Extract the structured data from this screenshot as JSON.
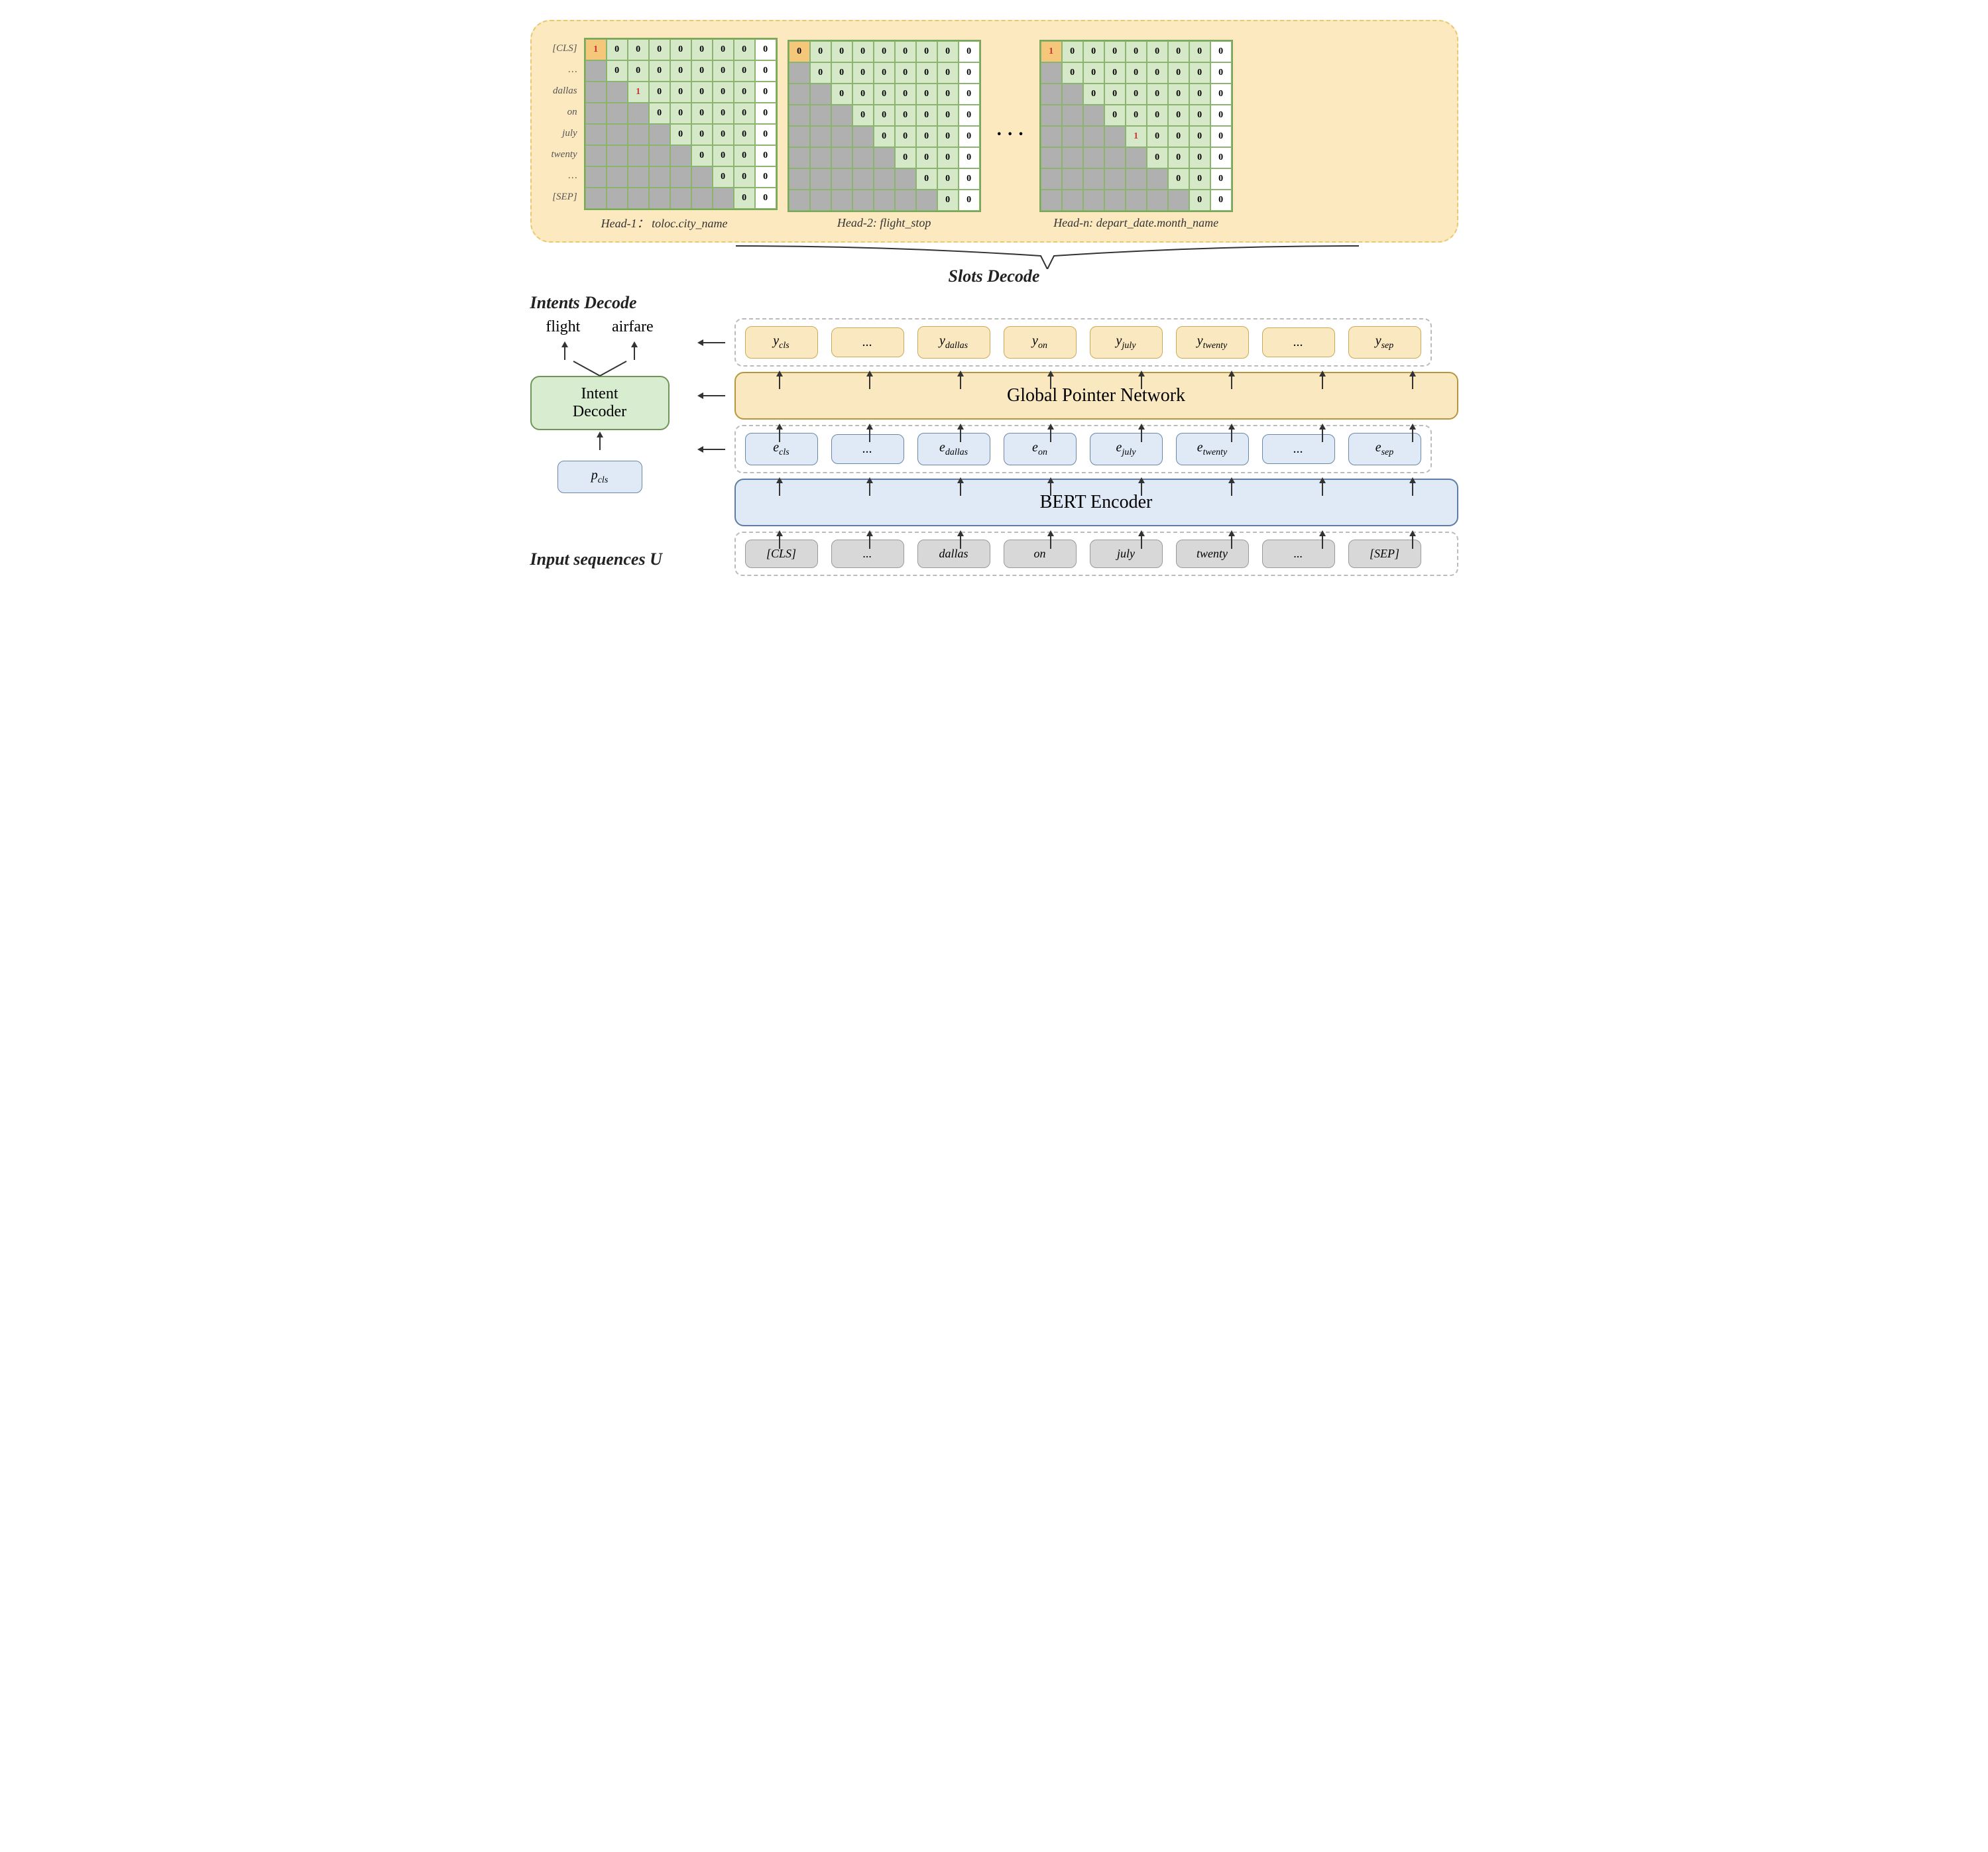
{
  "labels": {
    "slotsDecode": "Slots Decode",
    "intentsDecode": "Intents Decode",
    "inputSeq": "Input sequences U",
    "bert": "BERT Encoder",
    "gpn": "Global Pointer Network",
    "intentDecoder": "Intent\nDecoder",
    "pcls": "p",
    "pcls_sub": "cls"
  },
  "outputs": [
    "flight",
    "airfare"
  ],
  "rowLabels": [
    "[CLS]",
    "…",
    "dallas",
    "on",
    "july",
    "twenty",
    "…",
    "[SEP]"
  ],
  "heads": [
    {
      "caption": "Head-1： toloc.city_name",
      "ones": [
        [
          0,
          0
        ],
        [
          2,
          2
        ]
      ],
      "showLabels": true
    },
    {
      "caption": "Head-2:  flight_stop",
      "ones": [],
      "showLabels": false
    },
    {
      "caption": "Head-n: depart_date.month_name",
      "ones": [
        [
          0,
          0
        ],
        [
          4,
          4
        ]
      ],
      "showLabels": false
    }
  ],
  "inputTokens": [
    "[CLS]",
    "...",
    "dallas",
    "on",
    "july",
    "twenty",
    "...",
    "[SEP]"
  ],
  "eTokens": [
    "cls",
    "...",
    "dallas",
    "on",
    "july",
    "twenty",
    "...",
    "sep"
  ],
  "yTokens": [
    "cls",
    "...",
    "dallas",
    "on",
    "july",
    "twenty",
    "...",
    "sep"
  ],
  "colors": {
    "panelBg": "#fce9c0",
    "matrixBorder": "#7aa85a",
    "cellGreen": "#d5e8c8",
    "cellGray": "#b0b0b0",
    "cellOrange": "#f5c77a",
    "oneColor": "#d03030",
    "blue": "#dfeaf6",
    "yellow": "#fae9c0",
    "green": "#d8eccf"
  },
  "grid": {
    "rows": 8,
    "cols": 9
  }
}
